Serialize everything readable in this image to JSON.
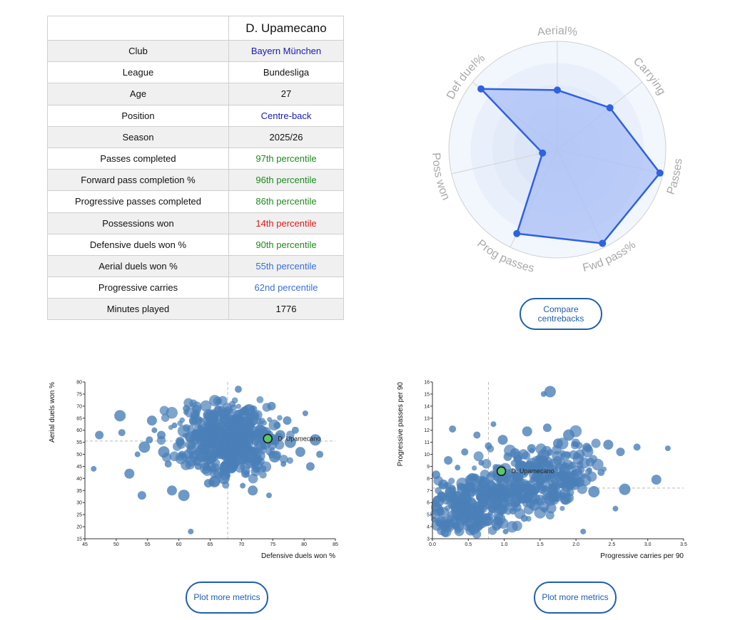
{
  "player_table": {
    "player_name": "D. Upamecano",
    "rows": [
      {
        "label": "Club",
        "value": "Bayern München",
        "tone": "blue"
      },
      {
        "label": "League",
        "value": "Bundesliga",
        "tone": "plain"
      },
      {
        "label": "Age",
        "value": "27",
        "tone": "plain"
      },
      {
        "label": "Position",
        "value": "Centre-back",
        "tone": "blue"
      },
      {
        "label": "Season",
        "value": "2025/26",
        "tone": "plain"
      },
      {
        "label": "Passes completed",
        "value": "97th percentile",
        "tone": "green"
      },
      {
        "label": "Forward pass completion %",
        "value": "96th percentile",
        "tone": "green"
      },
      {
        "label": "Progressive passes completed",
        "value": "86th percentile",
        "tone": "green"
      },
      {
        "label": "Possessions won",
        "value": "14th percentile",
        "tone": "red"
      },
      {
        "label": "Defensive duels won %",
        "value": "90th percentile",
        "tone": "green"
      },
      {
        "label": "Aerial duels won %",
        "value": "55th percentile",
        "tone": "mid"
      },
      {
        "label": "Progressive carries",
        "value": "62nd percentile",
        "tone": "mid"
      },
      {
        "label": "Minutes played",
        "value": "1776",
        "tone": "plain"
      }
    ]
  },
  "colors": {
    "blue": "#1a1ab8",
    "green": "#1e8a1e",
    "red": "#e01b1b",
    "mid": "#3a6fd8",
    "radar_line": "#2f62e0",
    "radar_fill": "#a9bff5",
    "scatter": "#4a7fb8",
    "highlight": "#5cc46a",
    "button": "#1f5fae"
  },
  "buttons": {
    "compare": "Compare centrebacks",
    "plot_more_1": "Plot more metrics",
    "plot_more_2": "Plot more metrics"
  },
  "chart_data": [
    {
      "type": "radar",
      "axes": [
        "Aerial%",
        "Carrying",
        "Passes",
        "Fwd pass%",
        "Prog passes",
        "Poss won",
        "Def duel%"
      ],
      "values": [
        55,
        62,
        97,
        96,
        86,
        14,
        90
      ],
      "range": [
        0,
        100
      ]
    },
    {
      "type": "scatter",
      "xlabel": "Defensive duels won %",
      "ylabel": "Aerial duels won %",
      "xlim": [
        45,
        85
      ],
      "ylim": [
        15,
        80
      ],
      "xticks": [
        45,
        50,
        55,
        60,
        65,
        70,
        75,
        80,
        85
      ],
      "yticks": [
        15,
        20,
        25,
        30,
        35,
        40,
        45,
        50,
        55,
        60,
        65,
        70,
        75,
        80
      ],
      "ref_x": 67.8,
      "ref_y": 55.5,
      "highlight": {
        "name": "D. Upamecano",
        "x": 74.2,
        "y": 56.5
      },
      "points": [
        [
          46.4,
          44
        ],
        [
          47.3,
          58
        ],
        [
          50.6,
          66
        ],
        [
          50.9,
          59
        ],
        [
          52.1,
          42
        ],
        [
          53.4,
          50
        ],
        [
          54.1,
          33
        ],
        [
          54.5,
          53
        ],
        [
          55.3,
          56
        ],
        [
          55.7,
          64
        ],
        [
          56.1,
          60
        ],
        [
          57.2,
          58
        ],
        [
          57.6,
          51
        ],
        [
          58.3,
          46
        ],
        [
          58.9,
          35
        ],
        [
          59.3,
          62
        ],
        [
          60.2,
          55
        ],
        [
          60.8,
          33
        ],
        [
          61.2,
          69
        ],
        [
          61.5,
          50
        ],
        [
          61.9,
          18
        ],
        [
          62.3,
          64
        ],
        [
          62.8,
          58
        ],
        [
          63.1,
          45
        ],
        [
          63.6,
          52
        ],
        [
          64.2,
          60
        ],
        [
          64.7,
          38
        ],
        [
          65.1,
          66
        ],
        [
          65.4,
          48
        ],
        [
          65.9,
          55
        ],
        [
          66.3,
          72
        ],
        [
          66.8,
          62
        ],
        [
          67.2,
          40
        ],
        [
          67.5,
          52
        ],
        [
          67.9,
          58
        ],
        [
          68.3,
          68
        ],
        [
          68.7,
          45
        ],
        [
          69.1,
          61
        ],
        [
          69.5,
          77
        ],
        [
          69.8,
          53
        ],
        [
          70.2,
          37
        ],
        [
          70.6,
          64
        ],
        [
          71.0,
          50
        ],
        [
          71.4,
          57
        ],
        [
          71.8,
          35
        ],
        [
          72.2,
          66
        ],
        [
          72.6,
          48
        ],
        [
          73.0,
          60
        ],
        [
          73.4,
          44
        ],
        [
          73.9,
          54
        ],
        [
          74.4,
          33
        ],
        [
          74.8,
          70
        ],
        [
          75.3,
          49
        ],
        [
          75.7,
          62
        ],
        [
          76.2,
          58
        ],
        [
          76.7,
          46
        ],
        [
          77.3,
          64
        ],
        [
          77.8,
          55
        ],
        [
          78.6,
          60
        ],
        [
          79.4,
          51
        ],
        [
          80.2,
          67
        ],
        [
          81.0,
          45
        ],
        [
          81.8,
          56
        ],
        [
          82.5,
          50
        ]
      ]
    },
    {
      "type": "scatter",
      "xlabel": "Progressive carries per 90",
      "ylabel": "Progressive passes per 90",
      "xlim": [
        0,
        3.5
      ],
      "ylim": [
        3,
        16
      ],
      "xticks": [
        0.0,
        0.5,
        1.0,
        1.5,
        2.0,
        2.5,
        3.0,
        3.5
      ],
      "yticks": [
        3,
        4,
        5,
        6,
        7,
        8,
        9,
        10,
        11,
        12,
        13,
        14,
        15,
        16
      ],
      "ref_x": 0.78,
      "ref_y": 7.2,
      "highlight": {
        "name": "D. Upamecano",
        "x": 0.96,
        "y": 8.6
      },
      "points": [
        [
          0.02,
          4.6
        ],
        [
          0.05,
          8.3
        ],
        [
          0.08,
          6.1
        ],
        [
          0.12,
          5.2
        ],
        [
          0.15,
          7.5
        ],
        [
          0.18,
          4.2
        ],
        [
          0.22,
          9.5
        ],
        [
          0.25,
          6.8
        ],
        [
          0.28,
          12.1
        ],
        [
          0.32,
          5.6
        ],
        [
          0.35,
          8.9
        ],
        [
          0.38,
          4.8
        ],
        [
          0.42,
          7.1
        ],
        [
          0.45,
          10.2
        ],
        [
          0.48,
          6.3
        ],
        [
          0.52,
          3.9
        ],
        [
          0.55,
          8.1
        ],
        [
          0.58,
          5.4
        ],
        [
          0.62,
          11.6
        ],
        [
          0.65,
          7.8
        ],
        [
          0.68,
          9.3
        ],
        [
          0.72,
          6.0
        ],
        [
          0.75,
          4.5
        ],
        [
          0.78,
          10.7
        ],
        [
          0.82,
          7.4
        ],
        [
          0.85,
          12.5
        ],
        [
          0.88,
          5.9
        ],
        [
          0.92,
          8.7
        ],
        [
          0.95,
          6.6
        ],
        [
          0.98,
          11.2
        ],
        [
          1.02,
          3.6
        ],
        [
          1.05,
          9.8
        ],
        [
          1.08,
          7.0
        ],
        [
          1.12,
          5.3
        ],
        [
          1.15,
          10.1
        ],
        [
          1.18,
          8.3
        ],
        [
          1.22,
          6.4
        ],
        [
          1.25,
          9.0
        ],
        [
          1.28,
          4.7
        ],
        [
          1.32,
          11.9
        ],
        [
          1.35,
          7.6
        ],
        [
          1.38,
          10.5
        ],
        [
          1.42,
          5.8
        ],
        [
          1.45,
          8.8
        ],
        [
          1.5,
          9.6
        ],
        [
          1.55,
          15.0
        ],
        [
          1.6,
          12.2
        ],
        [
          1.64,
          15.2
        ],
        [
          1.7,
          7.3
        ],
        [
          1.75,
          10.9
        ],
        [
          1.8,
          8.4
        ],
        [
          1.85,
          6.2
        ],
        [
          1.9,
          11.6
        ],
        [
          1.95,
          9.1
        ],
        [
          2.05,
          7.7
        ],
        [
          2.1,
          3.6
        ],
        [
          2.15,
          10.6
        ],
        [
          2.25,
          6.9
        ],
        [
          2.35,
          8.5
        ],
        [
          2.45,
          10.8
        ],
        [
          2.55,
          5.5
        ],
        [
          2.62,
          10.2
        ],
        [
          2.68,
          7.1
        ],
        [
          2.85,
          10.6
        ],
        [
          3.12,
          7.9
        ],
        [
          3.28,
          10.5
        ]
      ]
    }
  ]
}
